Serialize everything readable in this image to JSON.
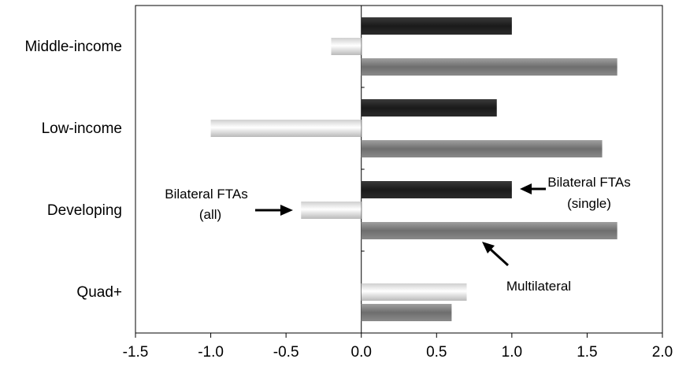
{
  "chart_data": {
    "type": "bar",
    "orientation": "horizontal",
    "categories": [
      "Middle-income",
      "Low-income",
      "Developing",
      "Quad+"
    ],
    "series": [
      {
        "name": "Bilateral FTAs (single)",
        "color": "#1f1f1f",
        "values": [
          1.0,
          0.9,
          1.0,
          null
        ]
      },
      {
        "name": "Bilateral FTAs (all)",
        "color": "#ffffff",
        "values": [
          -0.2,
          -1.0,
          -0.4,
          0.7
        ]
      },
      {
        "name": "Multilateral",
        "color": "#7a7a7a",
        "values": [
          1.7,
          1.6,
          1.7,
          0.6
        ]
      }
    ],
    "xlim": [
      -1.5,
      2.0
    ],
    "xticks": [
      "-1.5",
      "-1.0",
      "-0.5",
      "0.0",
      "0.5",
      "1.0",
      "1.5",
      "2.0"
    ],
    "title": "",
    "xlabel": "",
    "ylabel": "",
    "grid": false,
    "legend": "none",
    "annotations": {
      "bilateral_single": [
        "Bilateral FTAs",
        "(single)"
      ],
      "bilateral_all": [
        "Bilateral FTAs",
        "(all)"
      ],
      "multilateral": "Multilateral"
    }
  }
}
